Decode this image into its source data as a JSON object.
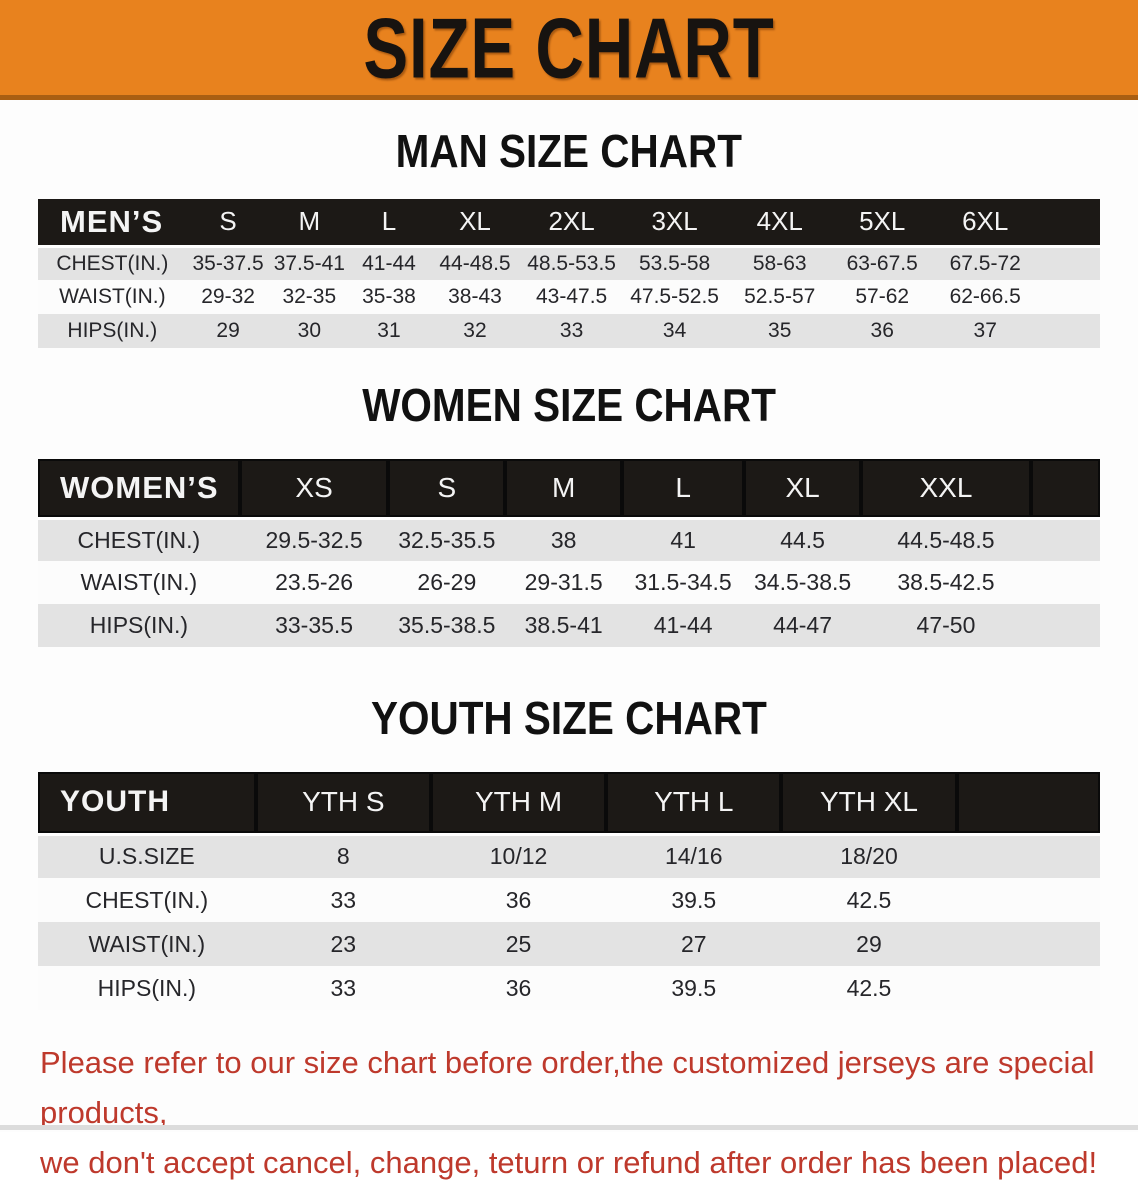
{
  "banner": {
    "title": "SIZE CHART",
    "bg_color": "#E8821E",
    "text_color": "#171310"
  },
  "sections": [
    {
      "title": "MAN SIZE CHART",
      "table": {
        "header_label": "MEN’S",
        "columns": [
          "S",
          "M",
          "L",
          "XL",
          "2XL",
          "3XL",
          "4XL",
          "5XL",
          "6XL"
        ],
        "rows": [
          {
            "label": "CHEST(IN.)",
            "values": [
              "35-37.5",
              "37.5-41",
              "41-44",
              "44-48.5",
              "48.5-53.5",
              "53.5-58",
              "58-63",
              "63-67.5",
              "67.5-72"
            ]
          },
          {
            "label": "WAIST(IN.)",
            "values": [
              "29-32",
              "32-35",
              "35-38",
              "38-43",
              "43-47.5",
              "47.5-52.5",
              "52.5-57",
              "57-62",
              "62-66.5"
            ]
          },
          {
            "label": "HIPS(IN.)",
            "values": [
              "29",
              "30",
              "31",
              "32",
              "33",
              "34",
              "35",
              "36",
              "37"
            ]
          }
        ]
      }
    },
    {
      "title": "WOMEN SIZE CHART",
      "table": {
        "header_label": "WOMEN’S",
        "columns": [
          "XS",
          "S",
          "M",
          "L",
          "XL",
          "XXL"
        ],
        "rows": [
          {
            "label": "CHEST(IN.)",
            "values": [
              "29.5-32.5",
              "32.5-35.5",
              "38",
              "41",
              "44.5",
              "44.5-48.5"
            ]
          },
          {
            "label": "WAIST(IN.)",
            "values": [
              "23.5-26",
              "26-29",
              "29-31.5",
              "31.5-34.5",
              "34.5-38.5",
              "38.5-42.5"
            ]
          },
          {
            "label": "HIPS(IN.)",
            "values": [
              "33-35.5",
              "35.5-38.5",
              "38.5-41",
              "41-44",
              "44-47",
              "47-50"
            ]
          }
        ]
      }
    },
    {
      "title": "YOUTH SIZE CHART",
      "table": {
        "header_label": "YOUTH",
        "columns": [
          "YTH S",
          "YTH M",
          "YTH L",
          "YTH XL"
        ],
        "rows": [
          {
            "label": "U.S.SIZE",
            "values": [
              "8",
              "10/12",
              "14/16",
              "18/20"
            ]
          },
          {
            "label": "CHEST(IN.)",
            "values": [
              "33",
              "36",
              "39.5",
              "42.5"
            ]
          },
          {
            "label": "WAIST(IN.)",
            "values": [
              "23",
              "25",
              "27",
              "29"
            ]
          },
          {
            "label": "HIPS(IN.)",
            "values": [
              "33",
              "36",
              "39.5",
              "42.5"
            ]
          }
        ]
      }
    }
  ],
  "footer": {
    "line1": "Please refer to our size chart before order,the customized jerseys are special products,",
    "line2": "we don't accept cancel, change, teturn or refund after order has been placed!",
    "text_color": "#BE392C"
  }
}
